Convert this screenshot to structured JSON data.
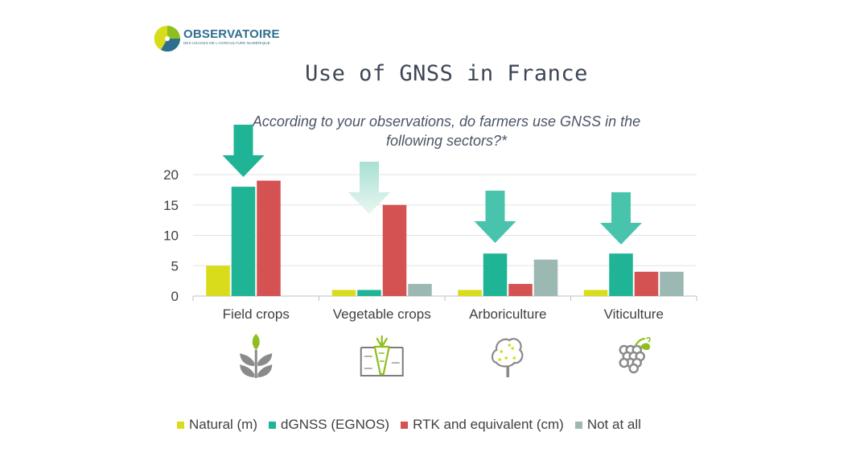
{
  "logo": {
    "name": "OBSERVATOIRE",
    "tagline": "DES USAGES DE L'AGRICULTURE NUMÉRIQUE",
    "colors": [
      "#8ebf1e",
      "#2e6f8e",
      "#1b4f7a"
    ]
  },
  "chart_data": {
    "type": "bar",
    "title": "Use of GNSS in France",
    "subtitle": "According to your observations, do farmers use GNSS in the following sectors?*",
    "categories": [
      "Field crops",
      "Vegetable crops",
      "Arboriculture",
      "Viticulture"
    ],
    "category_icons": [
      "wheat-sprout-icon",
      "carrot-in-soil-icon",
      "fruit-tree-icon",
      "grapes-icon"
    ],
    "series": [
      {
        "name": "Natural (m)",
        "color": "#d9dc1a",
        "values": [
          5,
          1,
          1,
          1
        ]
      },
      {
        "name": "dGNSS (EGNOS)",
        "color": "#1fb496",
        "values": [
          18,
          1,
          7,
          7
        ]
      },
      {
        "name": "RTK and equivalent (cm)",
        "color": "#d45252",
        "values": [
          19,
          15,
          2,
          4
        ]
      },
      {
        "name": "Not at all",
        "color": "#9cb8b3",
        "values": [
          0,
          2,
          6,
          4
        ]
      }
    ],
    "yticks": [
      0,
      5,
      10,
      15,
      20
    ],
    "ylim": [
      0,
      20
    ],
    "grid": true,
    "legend_position": "bottom",
    "annotations": [
      {
        "type": "down-arrow",
        "category": "Field crops",
        "color": "#1fb496"
      },
      {
        "type": "down-arrow",
        "category": "Vegetable crops",
        "color": "#c8ece3"
      },
      {
        "type": "down-arrow",
        "category": "Arboriculture",
        "color": "#48c4ac"
      },
      {
        "type": "down-arrow",
        "category": "Viticulture",
        "color": "#48c4ac"
      }
    ]
  }
}
